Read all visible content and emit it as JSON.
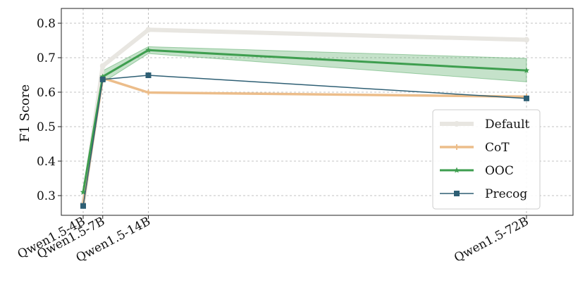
{
  "chart_data": {
    "type": "line",
    "title": "",
    "xlabel": "",
    "ylabel": "F1 Score",
    "categories": [
      "Qwen1.5-4B",
      "Qwen1.5-7B",
      "Qwen1.5-14B",
      "Qwen1.5-72B"
    ],
    "x_params_billion": [
      4,
      7,
      14,
      72
    ],
    "ylim": [
      0.25,
      0.81
    ],
    "yticks": [
      "0.3",
      "0.4",
      "0.5",
      "0.6",
      "0.7",
      "0.8"
    ],
    "grid": true,
    "legend_position": "lower right",
    "series": [
      {
        "name": "Default",
        "color": "#e8e6e1",
        "marker": "circle",
        "values": [
          0.277,
          0.676,
          0.781,
          0.752
        ]
      },
      {
        "name": "CoT",
        "color": "#ecbd8a",
        "marker": "plus",
        "values": [
          0.276,
          0.641,
          0.599,
          0.587
        ]
      },
      {
        "name": "OOC",
        "color": "#3e9e4f",
        "marker": "star",
        "values": [
          0.31,
          0.645,
          0.722,
          0.663
        ],
        "band_lower": [
          0.3,
          0.628,
          0.712,
          0.63
        ],
        "band_upper": [
          0.32,
          0.662,
          0.732,
          0.698
        ]
      },
      {
        "name": "Precog",
        "color": "#2e5f74",
        "marker": "square",
        "values": [
          0.27,
          0.637,
          0.649,
          0.582
        ]
      }
    ]
  }
}
